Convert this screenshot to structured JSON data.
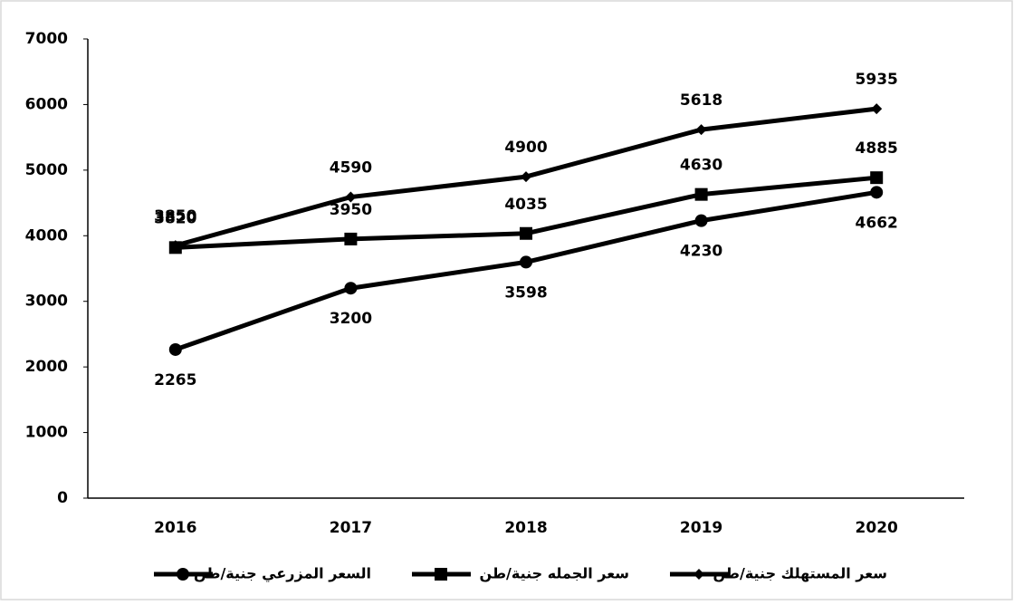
{
  "chart_data": {
    "type": "line",
    "categories": [
      "2016",
      "2017",
      "2018",
      "2019",
      "2020"
    ],
    "series": [
      {
        "name": "السعر المزرعي جنية/طن",
        "color": "#000000",
        "marker": "circle",
        "values": [
          2265,
          3200,
          3598,
          4230,
          4662
        ]
      },
      {
        "name": "سعر الجمله جنية/طن",
        "color": "#000000",
        "marker": "square",
        "values": [
          3820,
          3950,
          4035,
          4630,
          4885
        ]
      },
      {
        "name": "سعر المستهلك جنية/طن",
        "color": "#000000",
        "marker": "diamond",
        "values": [
          3850,
          4590,
          4900,
          5618,
          5935
        ]
      }
    ],
    "ylim": [
      0,
      7000
    ],
    "yticks": [
      0,
      1000,
      2000,
      3000,
      4000,
      5000,
      6000,
      7000
    ],
    "grid": false,
    "legend": "bottom"
  }
}
